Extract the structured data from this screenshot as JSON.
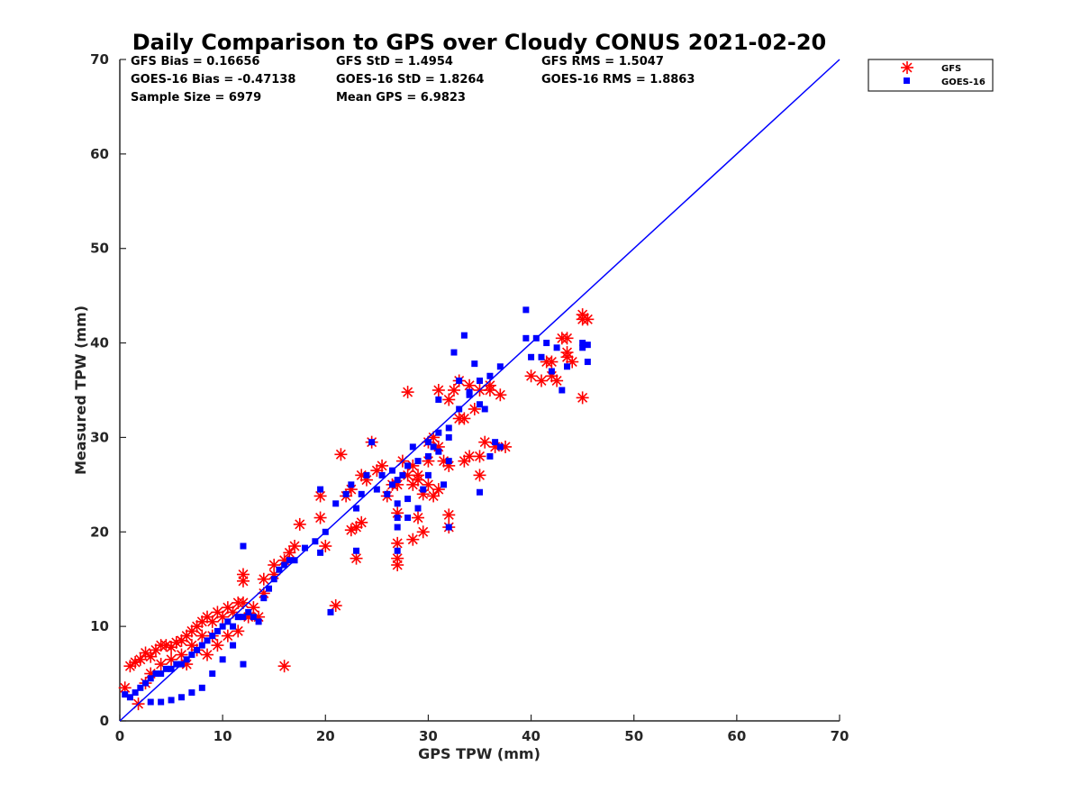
{
  "colors": {
    "gfs": "#ff0000",
    "goes": "#0000ff",
    "axis": "#262626",
    "line": "#0000ff"
  },
  "chart_data": {
    "type": "scatter",
    "title": "Daily Comparison to GPS over Cloudy CONUS 2021-02-20",
    "xlabel": "GPS TPW (mm)",
    "ylabel": "Measured TPW (mm)",
    "xlim": [
      0,
      70
    ],
    "ylim": [
      0,
      70
    ],
    "xticks": [
      "0",
      "10",
      "20",
      "30",
      "40",
      "50",
      "60",
      "70"
    ],
    "yticks": [
      "0",
      "10",
      "20",
      "30",
      "40",
      "50",
      "60",
      "70"
    ],
    "grid": false,
    "legend_position": "outside-top-right",
    "reference_line": {
      "name": "1:1 line",
      "x": [
        0,
        70
      ],
      "y": [
        0,
        70
      ]
    },
    "stats": {
      "gfs_bias": "GFS Bias = 0.16656",
      "gfs_std": "GFS StD = 1.4954",
      "gfs_rms": "GFS RMS = 1.5047",
      "goes_bias": "GOES-16 Bias = -0.47138",
      "goes_std": "GOES-16 StD = 1.8264",
      "goes_rms": "GOES-16 RMS = 1.8863",
      "sample_size": "Sample Size = 6979",
      "mean_gps": "Mean GPS = 6.9823"
    },
    "series": [
      {
        "name": "GFS",
        "marker": "asterisk",
        "points": [
          [
            0.5,
            3.5
          ],
          [
            1,
            5.8
          ],
          [
            1.5,
            6.2
          ],
          [
            2,
            6.5
          ],
          [
            1.8,
            1.8
          ],
          [
            2.5,
            7.2
          ],
          [
            3,
            6.8
          ],
          [
            3.5,
            7.5
          ],
          [
            4,
            8
          ],
          [
            4.5,
            8
          ],
          [
            5,
            7.8
          ],
          [
            5.5,
            8.3
          ],
          [
            6,
            8.5
          ],
          [
            6.5,
            9
          ],
          [
            7,
            9.5
          ],
          [
            7.5,
            10
          ],
          [
            8,
            10.5
          ],
          [
            8.5,
            11
          ],
          [
            9,
            10.5
          ],
          [
            9.5,
            11.5
          ],
          [
            10,
            11
          ],
          [
            10.5,
            12
          ],
          [
            11,
            11.5
          ],
          [
            11.5,
            12.5
          ],
          [
            12,
            12.5
          ],
          [
            12.5,
            11
          ],
          [
            13,
            12
          ],
          [
            13.5,
            11
          ],
          [
            7,
            8
          ],
          [
            8,
            9
          ],
          [
            9,
            9
          ],
          [
            6,
            7
          ],
          [
            5,
            6.5
          ],
          [
            4,
            6
          ],
          [
            3,
            5
          ],
          [
            2.5,
            4
          ],
          [
            6.5,
            6
          ],
          [
            7.5,
            7.5
          ],
          [
            8.5,
            7
          ],
          [
            9.5,
            8
          ],
          [
            10.5,
            9
          ],
          [
            11.5,
            9.5
          ],
          [
            12,
            15.5
          ],
          [
            12,
            14.8
          ],
          [
            14,
            15
          ],
          [
            15,
            15.5
          ],
          [
            15,
            16.5
          ],
          [
            16,
            17
          ],
          [
            16.5,
            17.8
          ],
          [
            17,
            18.5
          ],
          [
            17.5,
            20.8
          ],
          [
            16,
            5.8
          ],
          [
            14,
            13.5
          ],
          [
            19.5,
            23.8
          ],
          [
            19.5,
            21.5
          ],
          [
            20,
            18.5
          ],
          [
            21,
            12.2
          ],
          [
            21.5,
            28.2
          ],
          [
            22,
            23.8
          ],
          [
            22.5,
            24.5
          ],
          [
            22.5,
            20.2
          ],
          [
            23,
            20.5
          ],
          [
            23,
            17.2
          ],
          [
            23.5,
            21
          ],
          [
            23.5,
            26
          ],
          [
            24,
            25.5
          ],
          [
            24.5,
            29.5
          ],
          [
            25,
            26.5
          ],
          [
            25.5,
            27
          ],
          [
            26,
            23.8
          ],
          [
            26.5,
            25
          ],
          [
            27,
            25
          ],
          [
            27,
            18.8
          ],
          [
            27,
            17.2
          ],
          [
            27,
            16.5
          ],
          [
            27,
            22
          ],
          [
            28,
            34.8
          ],
          [
            28,
            26
          ],
          [
            28.5,
            25
          ],
          [
            28.5,
            19.2
          ],
          [
            29,
            21.5
          ],
          [
            29,
            26
          ],
          [
            29.5,
            20
          ],
          [
            29.5,
            24
          ],
          [
            30,
            25
          ],
          [
            30,
            29.5
          ],
          [
            30.5,
            30
          ],
          [
            30.5,
            23.8
          ],
          [
            31,
            24.5
          ],
          [
            31,
            29
          ],
          [
            31.5,
            27.5
          ],
          [
            32,
            21.8
          ],
          [
            32,
            27
          ],
          [
            32,
            34
          ],
          [
            32,
            20.5
          ],
          [
            32.5,
            35
          ],
          [
            33,
            32
          ],
          [
            33,
            36
          ],
          [
            33.5,
            27.5
          ],
          [
            33.5,
            32
          ],
          [
            34,
            35.5
          ],
          [
            34,
            28
          ],
          [
            34.5,
            33
          ],
          [
            35,
            28
          ],
          [
            35,
            26
          ],
          [
            35,
            35
          ],
          [
            35.5,
            29.5
          ],
          [
            36,
            35.5
          ],
          [
            36.5,
            29
          ],
          [
            37,
            34.5
          ],
          [
            37.5,
            29
          ],
          [
            36,
            35
          ],
          [
            40,
            36.5
          ],
          [
            41,
            36
          ],
          [
            41.5,
            38
          ],
          [
            42,
            36.5
          ],
          [
            42,
            38
          ],
          [
            42.5,
            36
          ],
          [
            43,
            40.5
          ],
          [
            43.5,
            39
          ],
          [
            43.5,
            38.5
          ],
          [
            43.5,
            40.5
          ],
          [
            44,
            38
          ],
          [
            45,
            43
          ],
          [
            45,
            42.5
          ],
          [
            45.5,
            42.5
          ],
          [
            45,
            34.2
          ],
          [
            31,
            35
          ],
          [
            27.5,
            27.5
          ],
          [
            28.5,
            27
          ],
          [
            29,
            25.5
          ],
          [
            30,
            27.5
          ]
        ]
      },
      {
        "name": "GOES-16",
        "marker": "square",
        "points": [
          [
            0.5,
            2.8
          ],
          [
            1,
            2.5
          ],
          [
            1.5,
            3
          ],
          [
            2,
            3.5
          ],
          [
            2.5,
            4
          ],
          [
            3,
            4.5
          ],
          [
            3.5,
            5
          ],
          [
            4,
            5
          ],
          [
            4.5,
            5.5
          ],
          [
            5,
            5.5
          ],
          [
            5.5,
            6
          ],
          [
            6,
            6
          ],
          [
            6.5,
            6.5
          ],
          [
            7,
            7
          ],
          [
            7.5,
            7.5
          ],
          [
            8,
            8
          ],
          [
            8.5,
            8.5
          ],
          [
            9,
            9
          ],
          [
            9.5,
            9.5
          ],
          [
            10,
            10
          ],
          [
            10.5,
            10.5
          ],
          [
            11,
            10
          ],
          [
            11.5,
            11
          ],
          [
            12,
            11
          ],
          [
            12.5,
            11.5
          ],
          [
            13,
            11
          ],
          [
            13.5,
            10.5
          ],
          [
            14,
            13
          ],
          [
            14.5,
            14
          ],
          [
            15,
            15
          ],
          [
            15.5,
            16
          ],
          [
            16,
            16.5
          ],
          [
            16.5,
            17
          ],
          [
            17,
            17
          ],
          [
            18,
            18.3
          ],
          [
            19,
            19
          ],
          [
            19.5,
            24.5
          ],
          [
            19.5,
            17.8
          ],
          [
            3,
            2
          ],
          [
            4,
            2
          ],
          [
            5,
            2.2
          ],
          [
            6,
            2.5
          ],
          [
            7,
            3
          ],
          [
            8,
            3.5
          ],
          [
            9,
            5
          ],
          [
            10,
            6.5
          ],
          [
            11,
            8
          ],
          [
            12,
            6
          ],
          [
            12,
            18.5
          ],
          [
            20,
            20
          ],
          [
            20.5,
            11.5
          ],
          [
            21,
            23
          ],
          [
            22,
            24
          ],
          [
            22.5,
            25
          ],
          [
            23,
            22.5
          ],
          [
            23,
            18
          ],
          [
            23.5,
            24
          ],
          [
            24,
            26
          ],
          [
            24.5,
            29.5
          ],
          [
            25,
            24.5
          ],
          [
            25.5,
            26
          ],
          [
            26,
            24
          ],
          [
            26.5,
            25
          ],
          [
            27,
            25.5
          ],
          [
            27,
            21.5
          ],
          [
            27,
            23
          ],
          [
            27,
            20.5
          ],
          [
            27,
            18
          ],
          [
            27.5,
            26
          ],
          [
            28,
            27
          ],
          [
            28,
            23.5
          ],
          [
            28,
            21.5
          ],
          [
            28.5,
            29
          ],
          [
            29,
            27.5
          ],
          [
            29,
            22.5
          ],
          [
            29.5,
            24.5
          ],
          [
            30,
            26
          ],
          [
            30,
            29.5
          ],
          [
            30.5,
            29
          ],
          [
            31,
            28.5
          ],
          [
            31,
            30.5
          ],
          [
            31.5,
            25
          ],
          [
            32,
            27.5
          ],
          [
            32,
            30
          ],
          [
            32,
            20.5
          ],
          [
            32.5,
            39
          ],
          [
            33,
            33
          ],
          [
            33,
            36
          ],
          [
            33.5,
            40.8
          ],
          [
            34,
            34.5
          ],
          [
            34.5,
            37.8
          ],
          [
            35,
            36
          ],
          [
            35,
            24.2
          ],
          [
            35.5,
            33
          ],
          [
            36,
            36.5
          ],
          [
            36.5,
            29.5
          ],
          [
            37,
            37.5
          ],
          [
            37,
            29
          ],
          [
            39.5,
            43.5
          ],
          [
            39.5,
            40.5
          ],
          [
            40,
            38.5
          ],
          [
            40.5,
            40.5
          ],
          [
            41,
            38.5
          ],
          [
            41.5,
            40
          ],
          [
            42,
            37
          ],
          [
            42.5,
            39.5
          ],
          [
            43,
            35
          ],
          [
            43.5,
            37.5
          ],
          [
            45,
            40
          ],
          [
            45,
            39.5
          ],
          [
            45.5,
            38
          ],
          [
            45.5,
            39.8
          ],
          [
            31,
            34
          ],
          [
            32,
            31
          ],
          [
            30,
            28
          ],
          [
            34,
            34.8
          ],
          [
            35,
            33.5
          ],
          [
            36,
            28
          ],
          [
            26.5,
            26.5
          ]
        ]
      }
    ]
  }
}
